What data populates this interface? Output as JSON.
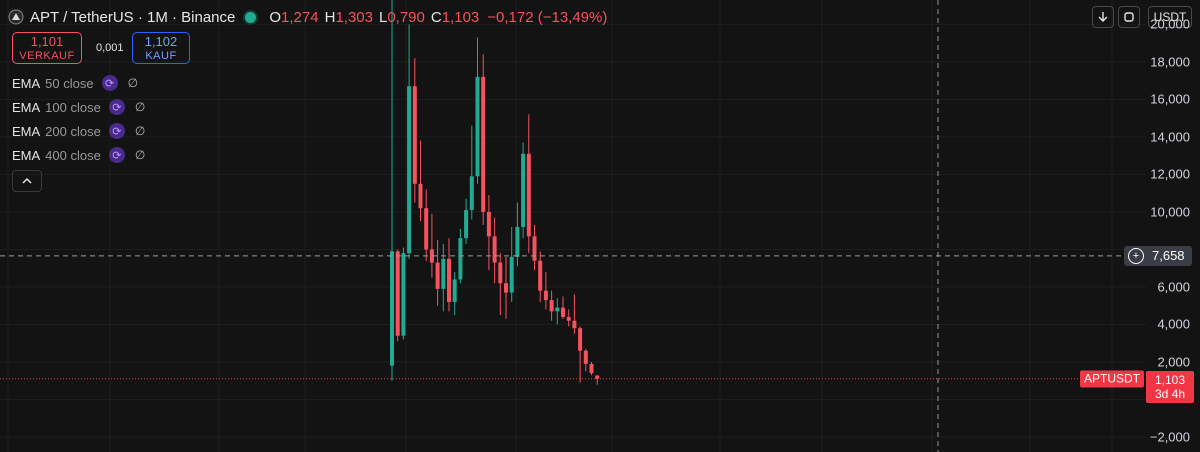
{
  "header": {
    "symbol": "APT / TetherUS · 1M · Binance",
    "ohlc": [
      {
        "label": "O",
        "value": "1,274"
      },
      {
        "label": "H",
        "value": "1,303"
      },
      {
        "label": "L",
        "value": "0,790"
      },
      {
        "label": "C",
        "value": "1,103"
      }
    ],
    "change": "−0,172 (−13,49%)"
  },
  "trade": {
    "sell_price": "1,101",
    "sell_label": "VERKAUF",
    "spread": "0,001",
    "buy_price": "1,102",
    "buy_label": "KAUF"
  },
  "indicators": [
    {
      "name": "EMA",
      "params": "50 close",
      "value": "∅"
    },
    {
      "name": "EMA",
      "params": "100 close",
      "value": "∅"
    },
    {
      "name": "EMA",
      "params": "200 close",
      "value": "∅"
    },
    {
      "name": "EMA",
      "params": "400 close",
      "value": "∅"
    }
  ],
  "toolbar": {
    "currency": "USDT"
  },
  "y_axis_labels": [
    {
      "value": 20000,
      "text": "20,000"
    },
    {
      "value": 18000,
      "text": "18,000"
    },
    {
      "value": 16000,
      "text": "16,000"
    },
    {
      "value": 14000,
      "text": "14,000"
    },
    {
      "value": 12000,
      "text": "12,000"
    },
    {
      "value": 10000,
      "text": "10,000"
    },
    {
      "value": 6000,
      "text": "6,000"
    },
    {
      "value": 4000,
      "text": "4,000"
    },
    {
      "value": 2000,
      "text": "2,000"
    },
    {
      "value": -2000,
      "text": "−2,000"
    }
  ],
  "crosshair": {
    "price": 7658,
    "price_text": "7,658"
  },
  "last_price": {
    "value": 1103,
    "symbol": "APTUSDT",
    "text": "1,103",
    "countdown": "3d 4h"
  },
  "colors": {
    "up": "#22ab94",
    "down": "#f7525f",
    "background": "#131313",
    "grid": "#1e1e1e",
    "price_tag": "#f23645"
  },
  "chart_data": {
    "type": "candlestick",
    "title": "APT / TetherUS · 1M · Binance",
    "timeframe": "1M",
    "ylim": [
      -2800,
      21300
    ],
    "grid": true,
    "candles": [
      {
        "o": 1800,
        "h": 22200,
        "l": 1000,
        "c": 7900
      },
      {
        "o": 7900,
        "h": 8000,
        "l": 3100,
        "c": 3400
      },
      {
        "o": 3400,
        "h": 8100,
        "l": 3200,
        "c": 7800
      },
      {
        "o": 7800,
        "h": 20000,
        "l": 7500,
        "c": 16700
      },
      {
        "o": 16700,
        "h": 18200,
        "l": 10500,
        "c": 11500
      },
      {
        "o": 11500,
        "h": 13800,
        "l": 9500,
        "c": 10200
      },
      {
        "o": 10200,
        "h": 11200,
        "l": 7400,
        "c": 8000
      },
      {
        "o": 8000,
        "h": 9900,
        "l": 6500,
        "c": 7300
      },
      {
        "o": 7300,
        "h": 8500,
        "l": 5000,
        "c": 5900
      },
      {
        "o": 5900,
        "h": 8300,
        "l": 4700,
        "c": 7500
      },
      {
        "o": 7500,
        "h": 8600,
        "l": 4700,
        "c": 5200
      },
      {
        "o": 5200,
        "h": 6800,
        "l": 4500,
        "c": 6400
      },
      {
        "o": 6400,
        "h": 9100,
        "l": 6200,
        "c": 8600
      },
      {
        "o": 8600,
        "h": 10700,
        "l": 8300,
        "c": 10100
      },
      {
        "o": 10100,
        "h": 14600,
        "l": 9600,
        "c": 11900
      },
      {
        "o": 11900,
        "h": 19300,
        "l": 11500,
        "c": 17200
      },
      {
        "o": 17200,
        "h": 18400,
        "l": 9300,
        "c": 10000
      },
      {
        "o": 10000,
        "h": 10900,
        "l": 6900,
        "c": 8700
      },
      {
        "o": 8700,
        "h": 9700,
        "l": 6200,
        "c": 7300
      },
      {
        "o": 7300,
        "h": 7800,
        "l": 4500,
        "c": 6200
      },
      {
        "o": 6200,
        "h": 7600,
        "l": 4300,
        "c": 5700
      },
      {
        "o": 5700,
        "h": 9200,
        "l": 5200,
        "c": 7600
      },
      {
        "o": 7600,
        "h": 10500,
        "l": 7100,
        "c": 9200
      },
      {
        "o": 9200,
        "h": 13700,
        "l": 8600,
        "c": 13100
      },
      {
        "o": 13100,
        "h": 15200,
        "l": 7800,
        "c": 8700
      },
      {
        "o": 8700,
        "h": 9300,
        "l": 6900,
        "c": 7400
      },
      {
        "o": 7400,
        "h": 7900,
        "l": 5200,
        "c": 5800
      },
      {
        "o": 5800,
        "h": 6800,
        "l": 4800,
        "c": 5300
      },
      {
        "o": 5300,
        "h": 5800,
        "l": 4200,
        "c": 4700
      },
      {
        "o": 4700,
        "h": 5400,
        "l": 4000,
        "c": 4900
      },
      {
        "o": 4900,
        "h": 5500,
        "l": 4300,
        "c": 4400
      },
      {
        "o": 4400,
        "h": 4800,
        "l": 3900,
        "c": 4200
      },
      {
        "o": 4200,
        "h": 5600,
        "l": 3500,
        "c": 3800
      },
      {
        "o": 3800,
        "h": 3900,
        "l": 900,
        "c": 2600
      },
      {
        "o": 2600,
        "h": 2700,
        "l": 1500,
        "c": 1900
      },
      {
        "o": 1900,
        "h": 2000,
        "l": 1300,
        "c": 1400
      },
      {
        "o": 1274,
        "h": 1303,
        "l": 790,
        "c": 1103
      }
    ]
  }
}
